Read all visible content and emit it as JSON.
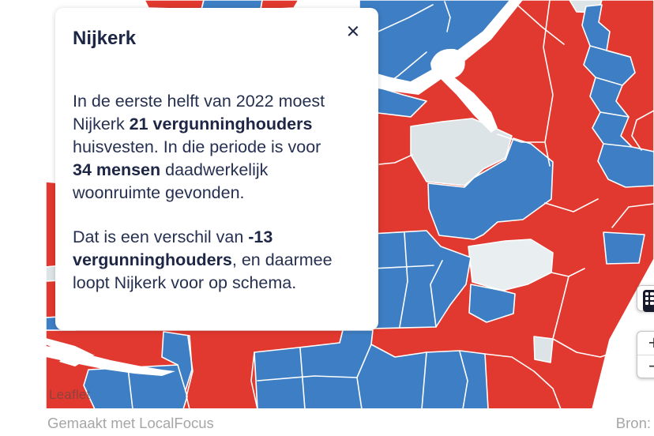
{
  "popup": {
    "title": "Nijkerk",
    "close_label": "×",
    "paragraphs": [
      {
        "lines": [
          [
            {
              "t": "In de eerste helft van 2022 moest"
            }
          ],
          [
            {
              "t": "Nijkerk "
            },
            {
              "t": "21 vergunninghouders",
              "b": true
            }
          ],
          [
            {
              "t": "huisvesten. In die periode is voor"
            }
          ],
          [
            {
              "t": "34 mensen",
              "b": true
            },
            {
              "t": " daadwerkelijk"
            }
          ],
          [
            {
              "t": "woonruimte gevonden."
            }
          ]
        ]
      },
      {
        "lines": [
          [
            {
              "t": "Dat is een verschil van "
            },
            {
              "t": "-13",
              "b": true
            }
          ],
          [
            {
              "t": "vergunninghouders",
              "b": true
            },
            {
              "t": ", en daarmee"
            }
          ],
          [
            {
              "t": "loopt Nijkerk voor op schema."
            }
          ]
        ]
      }
    ]
  },
  "map": {
    "attribution": "Leaflet",
    "colors": {
      "red": "#e1392f",
      "blue": "#3e7ec4",
      "gray": "#dde4e8",
      "light": "#e9eef1",
      "water": "#ffffff",
      "border": "#ffffff"
    },
    "controls": {
      "zoom_in": "+",
      "zoom_out": "−",
      "table_view": "tabelweergave"
    }
  },
  "footer": {
    "credit": "Gemaakt met LocalFocus",
    "source_label": "Bron:"
  }
}
